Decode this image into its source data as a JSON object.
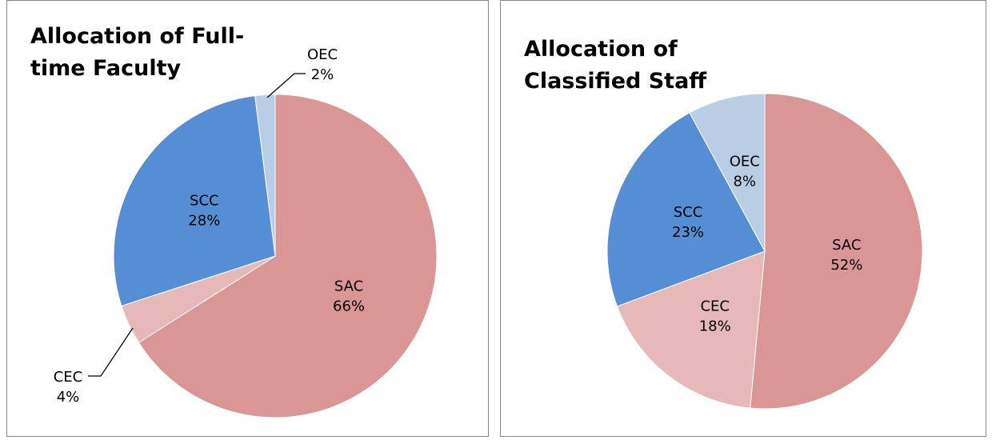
{
  "chart_data": [
    {
      "type": "pie",
      "title": "Allocation of Full-time Faculty",
      "categories": [
        "SAC",
        "CEC",
        "SCC",
        "OEC"
      ],
      "values": [
        66,
        4,
        28,
        2
      ],
      "value_labels": [
        "66%",
        "4%",
        "28%",
        "2%"
      ],
      "colors": [
        "#d99694",
        "#e6b9b8",
        "#558ed5",
        "#b9cde5"
      ]
    },
    {
      "type": "pie",
      "title": "Allocation of Classified Staff",
      "categories": [
        "SAC",
        "CEC",
        "SCC",
        "OEC"
      ],
      "values": [
        52,
        18,
        23,
        8
      ],
      "value_labels": [
        "52%",
        "18%",
        "23%",
        "8%"
      ],
      "colors": [
        "#d99694",
        "#e6b9b8",
        "#558ed5",
        "#b9cde5"
      ]
    }
  ]
}
